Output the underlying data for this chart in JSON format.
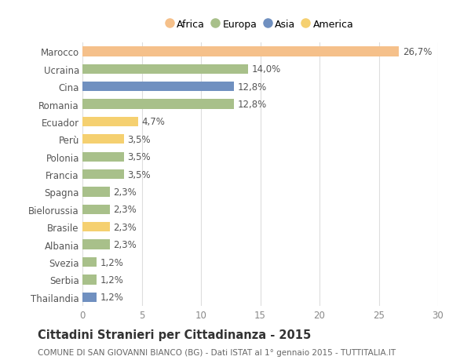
{
  "categories": [
    "Marocco",
    "Ucraina",
    "Cina",
    "Romania",
    "Ecuador",
    "Perù",
    "Polonia",
    "Francia",
    "Spagna",
    "Bielorussia",
    "Brasile",
    "Albania",
    "Svezia",
    "Serbia",
    "Thailandia"
  ],
  "values": [
    26.7,
    14.0,
    12.8,
    12.8,
    4.7,
    3.5,
    3.5,
    3.5,
    2.3,
    2.3,
    2.3,
    2.3,
    1.2,
    1.2,
    1.2
  ],
  "labels": [
    "26,7%",
    "14,0%",
    "12,8%",
    "12,8%",
    "4,7%",
    "3,5%",
    "3,5%",
    "3,5%",
    "2,3%",
    "2,3%",
    "2,3%",
    "2,3%",
    "1,2%",
    "1,2%",
    "1,2%"
  ],
  "colors": [
    "#F5C08A",
    "#A8C08A",
    "#7090C0",
    "#A8C08A",
    "#F5D070",
    "#F5D070",
    "#A8C08A",
    "#A8C08A",
    "#A8C08A",
    "#A8C08A",
    "#F5D070",
    "#A8C08A",
    "#A8C08A",
    "#A8C08A",
    "#7090C0"
  ],
  "legend_labels": [
    "Africa",
    "Europa",
    "Asia",
    "America"
  ],
  "legend_colors": [
    "#F5C08A",
    "#A8C08A",
    "#7090C0",
    "#F5D070"
  ],
  "xlim": [
    0,
    30
  ],
  "xticks": [
    0,
    5,
    10,
    15,
    20,
    25,
    30
  ],
  "title": "Cittadini Stranieri per Cittadinanza - 2015",
  "subtitle": "COMUNE DI SAN GIOVANNI BIANCO (BG) - Dati ISTAT al 1° gennaio 2015 - TUTTITALIA.IT",
  "bg_color": "#ffffff",
  "grid_color": "#dddddd",
  "bar_height": 0.55,
  "label_fontsize": 8.5,
  "tick_fontsize": 8.5,
  "title_fontsize": 10.5,
  "subtitle_fontsize": 7.5
}
